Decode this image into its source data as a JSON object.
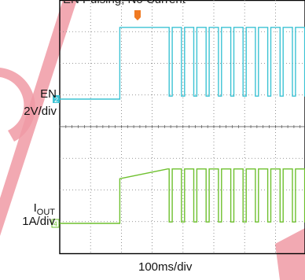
{
  "title": "EN Pulsing, No Current",
  "channels": {
    "en": {
      "name": "EN",
      "scale": "2V/div",
      "color": "#3cc3d4",
      "marker": "2"
    },
    "iout": {
      "name_main": "I",
      "name_sub": "OUT",
      "scale": "1A/div",
      "color": "#6ec02e",
      "marker": "4"
    }
  },
  "timebase": "100ms/div",
  "watermark_color": "#f09aa5",
  "trigger_color": "#f07a22",
  "chart_data": {
    "type": "line",
    "x_unit": "ms",
    "x_range": [
      0,
      1000
    ],
    "grid": true,
    "series": [
      {
        "name": "EN",
        "points": [
          [
            0,
            0
          ],
          [
            100,
            0
          ],
          [
            195,
            0
          ],
          [
            195,
            4.8
          ],
          [
            350,
            4.8
          ],
          [
            355,
            4.8
          ],
          [
            355,
            0.2
          ],
          [
            365,
            0.2
          ],
          [
            365,
            4.8
          ],
          [
            395,
            4.8
          ],
          [
            395,
            0.2
          ],
          [
            405,
            0.2
          ],
          [
            405,
            4.8
          ],
          [
            435,
            4.8
          ],
          [
            435,
            0.2
          ],
          [
            445,
            0.2
          ],
          [
            445,
            4.8
          ],
          [
            475,
            4.8
          ],
          [
            475,
            0.2
          ],
          [
            485,
            0.2
          ],
          [
            485,
            4.8
          ],
          [
            515,
            4.8
          ],
          [
            515,
            0.2
          ],
          [
            525,
            0.2
          ],
          [
            525,
            4.8
          ],
          [
            555,
            4.8
          ],
          [
            555,
            0.2
          ],
          [
            565,
            0.2
          ],
          [
            565,
            4.8
          ],
          [
            595,
            4.8
          ],
          [
            595,
            0.2
          ],
          [
            605,
            0.2
          ],
          [
            605,
            4.8
          ],
          [
            635,
            4.8
          ],
          [
            635,
            0.2
          ],
          [
            645,
            0.2
          ],
          [
            645,
            4.8
          ],
          [
            675,
            4.8
          ],
          [
            675,
            0.2
          ],
          [
            685,
            0.2
          ],
          [
            685,
            4.8
          ],
          [
            715,
            4.8
          ],
          [
            715,
            0.2
          ],
          [
            725,
            0.2
          ],
          [
            725,
            4.8
          ],
          [
            755,
            4.8
          ],
          [
            755,
            0.2
          ],
          [
            765,
            0.2
          ],
          [
            765,
            4.8
          ],
          [
            795,
            4.8
          ],
          [
            795,
            0.2
          ],
          [
            805,
            0.2
          ],
          [
            805,
            4.8
          ],
          [
            835,
            4.8
          ],
          [
            835,
            0.2
          ],
          [
            845,
            0.2
          ],
          [
            845,
            4.8
          ],
          [
            875,
            4.8
          ],
          [
            875,
            0.2
          ],
          [
            885,
            0.2
          ],
          [
            885,
            4.8
          ],
          [
            915,
            4.8
          ],
          [
            915,
            0.2
          ],
          [
            925,
            0.2
          ],
          [
            925,
            4.8
          ],
          [
            955,
            4.8
          ],
          [
            955,
            0.2
          ],
          [
            965,
            0.2
          ],
          [
            965,
            4.8
          ],
          [
            1000,
            4.8
          ]
        ]
      },
      {
        "name": "IOUT",
        "points": [
          [
            0,
            0
          ],
          [
            100,
            0
          ],
          [
            195,
            0
          ],
          [
            195,
            1.6
          ],
          [
            350,
            1.95
          ],
          [
            355,
            1.95
          ],
          [
            355,
            0.05
          ],
          [
            365,
            0.05
          ],
          [
            365,
            1.95
          ],
          [
            395,
            1.95
          ],
          [
            395,
            0.05
          ],
          [
            405,
            0.05
          ],
          [
            405,
            1.95
          ],
          [
            435,
            1.95
          ],
          [
            435,
            0.05
          ],
          [
            445,
            0.05
          ],
          [
            445,
            1.95
          ],
          [
            475,
            1.95
          ],
          [
            475,
            0.05
          ],
          [
            485,
            0.05
          ],
          [
            485,
            1.95
          ],
          [
            515,
            1.95
          ],
          [
            515,
            0.05
          ],
          [
            525,
            0.05
          ],
          [
            525,
            1.95
          ],
          [
            555,
            1.95
          ],
          [
            555,
            0.05
          ],
          [
            565,
            0.05
          ],
          [
            565,
            1.95
          ],
          [
            595,
            1.95
          ],
          [
            595,
            0.05
          ],
          [
            605,
            0.05
          ],
          [
            605,
            1.95
          ],
          [
            635,
            1.95
          ],
          [
            635,
            0.05
          ],
          [
            645,
            0.05
          ],
          [
            645,
            1.95
          ],
          [
            675,
            1.95
          ],
          [
            675,
            0.05
          ],
          [
            685,
            0.05
          ],
          [
            685,
            1.95
          ],
          [
            715,
            1.95
          ],
          [
            715,
            0.05
          ],
          [
            725,
            0.05
          ],
          [
            725,
            1.95
          ],
          [
            755,
            1.95
          ],
          [
            755,
            0.05
          ],
          [
            765,
            0.05
          ],
          [
            765,
            1.95
          ],
          [
            795,
            1.95
          ],
          [
            795,
            0.05
          ],
          [
            805,
            0.05
          ],
          [
            805,
            1.95
          ],
          [
            835,
            1.95
          ],
          [
            835,
            0.05
          ],
          [
            845,
            0.05
          ],
          [
            845,
            1.95
          ],
          [
            875,
            1.95
          ],
          [
            875,
            0.05
          ],
          [
            885,
            0.05
          ],
          [
            885,
            1.95
          ],
          [
            915,
            1.95
          ],
          [
            915,
            0.05
          ],
          [
            925,
            0.05
          ],
          [
            925,
            1.95
          ],
          [
            955,
            1.95
          ],
          [
            955,
            0.05
          ],
          [
            965,
            0.05
          ],
          [
            965,
            1.95
          ],
          [
            1000,
            1.95
          ]
        ]
      }
    ]
  }
}
